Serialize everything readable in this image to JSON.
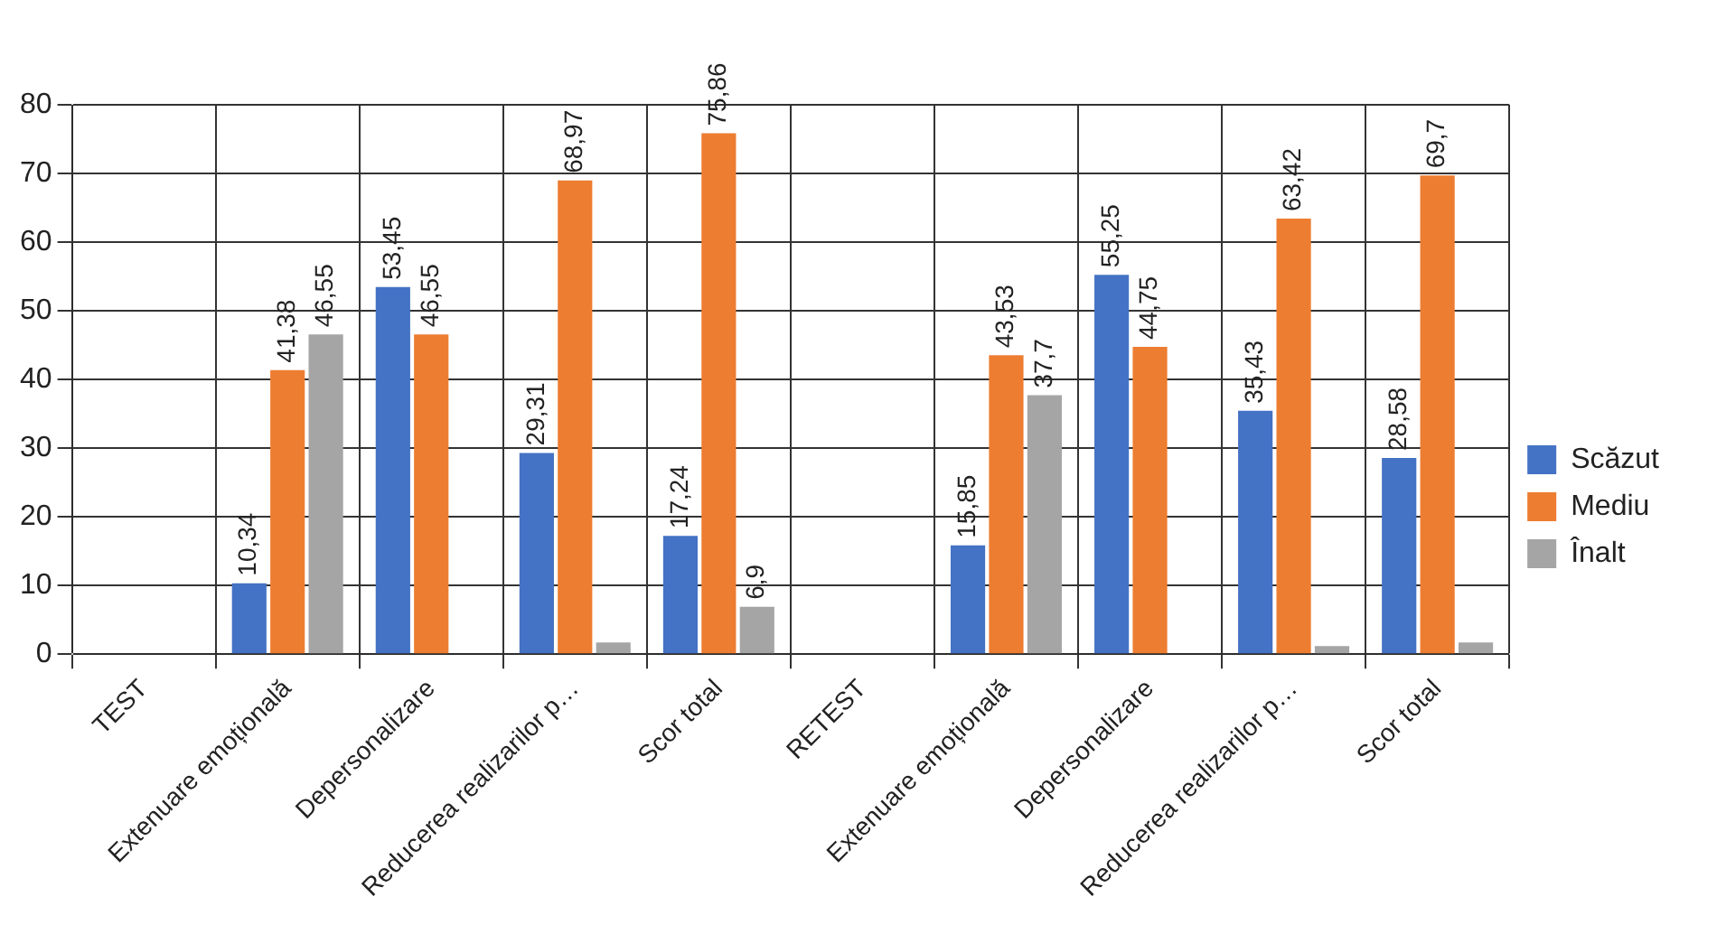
{
  "chart_data": {
    "type": "bar",
    "categories": [
      "TEST",
      "Extenuare emoțională",
      "Depersonalizare",
      "Reducerea realizarilor p…",
      "Scor total",
      "RETEST",
      "Extenuare emoțională",
      "Depersonalizare",
      "Reducerea realizarilor p…",
      "Scor total"
    ],
    "series": [
      {
        "name": "Scăzut",
        "color": "#4472c4",
        "values": [
          null,
          10.34,
          53.45,
          29.31,
          17.24,
          null,
          15.85,
          55.25,
          35.43,
          28.58
        ],
        "value_labels": [
          null,
          "10,34",
          "53,45",
          "29,31",
          "17,24",
          null,
          "15,85",
          "55,25",
          "35,43",
          "28,58"
        ]
      },
      {
        "name": "Mediu",
        "color": "#ed7d31",
        "values": [
          null,
          41.38,
          46.55,
          68.97,
          75.86,
          null,
          43.53,
          44.75,
          63.42,
          69.7
        ],
        "value_labels": [
          null,
          "41,38",
          "46,55",
          "68,97",
          "75,86",
          null,
          "43,53",
          "44,75",
          "63,42",
          "69,7"
        ]
      },
      {
        "name": "Înalt",
        "color": "#a5a5a5",
        "values": [
          null,
          46.55,
          null,
          1.7,
          6.9,
          null,
          37.7,
          null,
          1.2,
          1.7
        ],
        "value_labels": [
          null,
          "46,55",
          null,
          null,
          "6,9",
          null,
          "37,7",
          null,
          null,
          null
        ]
      }
    ],
    "ylim": [
      0,
      80
    ],
    "yticks": [
      0,
      10,
      20,
      30,
      40,
      50,
      60,
      70,
      80
    ],
    "grid": true,
    "legend": "right"
  }
}
